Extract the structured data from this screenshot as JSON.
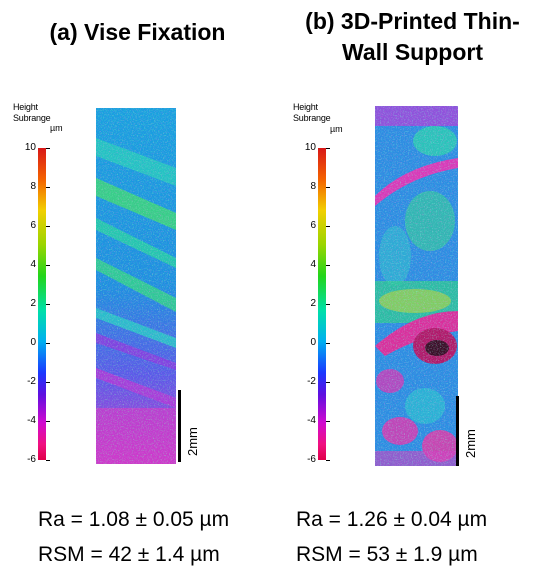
{
  "panels": [
    {
      "title": "(a) Vise Fixation",
      "colorbar": {
        "label_lines": [
          "Height",
          "Subrange"
        ],
        "unit": "µm",
        "ticks": [
          "10",
          "8",
          "6",
          "4",
          "2",
          "0",
          "-2",
          "-4",
          "-6"
        ]
      },
      "scale_bar_label": "2mm",
      "ra": "Ra = 1.08 ± 0.05 µm",
      "rsm": "RSM = 42 ± 1.4 µm"
    },
    {
      "title_lines": [
        "(b) 3D-Printed Thin-",
        "Wall Support"
      ],
      "colorbar": {
        "label_lines": [
          "Height",
          "Subrange"
        ],
        "unit": "µm",
        "ticks": [
          "10",
          "8",
          "6",
          "4",
          "2",
          "0",
          "-2",
          "-4",
          "-6"
        ]
      },
      "scale_bar_label": "2mm",
      "ra": "Ra = 1.26 ± 0.04 µm",
      "rsm": "RSM = 53 ± 1.9 µm"
    }
  ],
  "colors": {
    "map_base_a": "#1c9bd8",
    "map_base_b": "#2f8fe0",
    "band_cyan": "#25d3b0",
    "band_green": "#4fd94a",
    "band_magenta": "#e33ab8",
    "band_purple": "#8a2be2",
    "band_yellow": "#d8e020",
    "band_red": "#d0204a"
  }
}
